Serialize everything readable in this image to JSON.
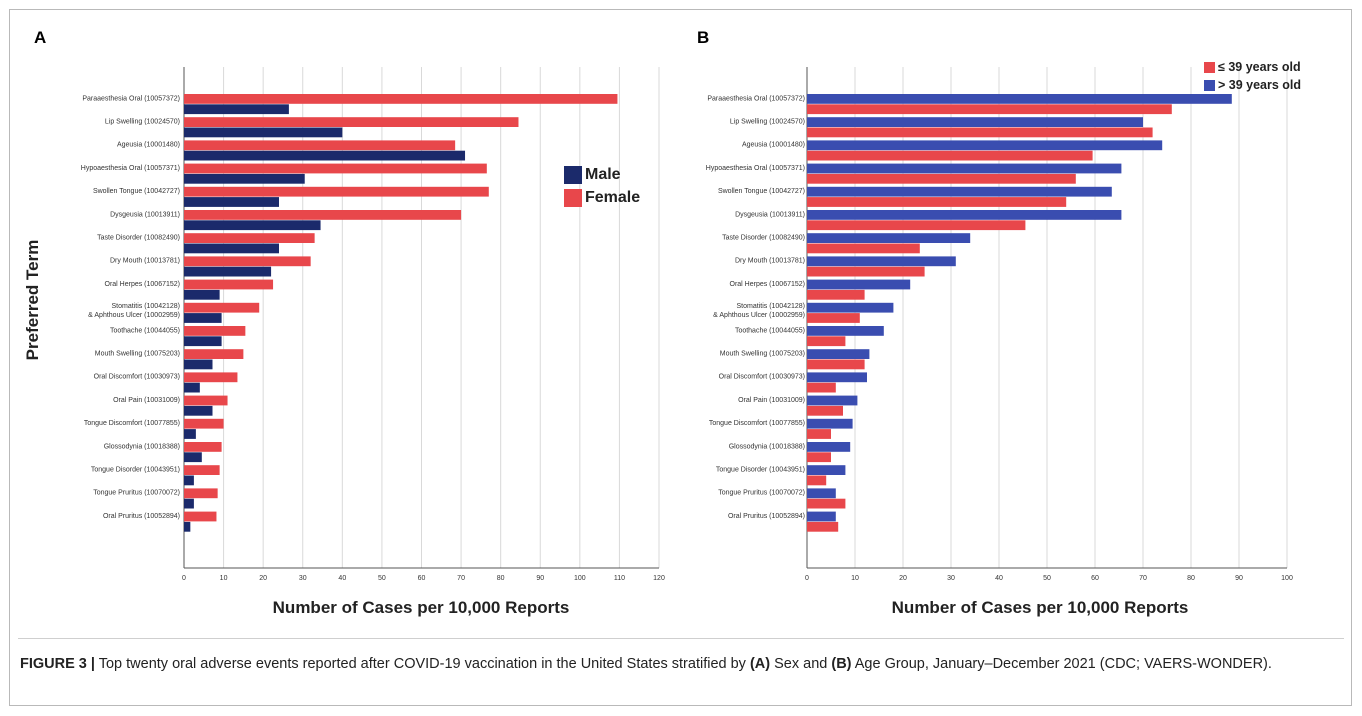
{
  "panels": {
    "a_letter": "A",
    "b_letter": "B"
  },
  "caption": {
    "label": "FIGURE 3 |",
    "part1": " Top twenty oral adverse events reported after COVID-19 vaccination in the United States stratified by ",
    "bold_a": "(A)",
    "part2": " Sex and ",
    "bold_b": "(B)",
    "part3": " Age Group, January–December 2021 (CDC; VAERS-WONDER)."
  },
  "colors": {
    "red": "#e8474b",
    "navy": "#1b2a6b",
    "blue": "#3a4db0",
    "grid": "#d9d9d9"
  },
  "chart_data": [
    {
      "type": "bar",
      "orientation": "horizontal",
      "panel": "A",
      "ylabel": "Preferred Term",
      "xlabel": "Number of Cases per 10,000 Reports",
      "xlim": [
        0,
        120
      ],
      "xticks": [
        "0",
        "10",
        "20",
        "30",
        "40",
        "50",
        "60",
        "70",
        "80",
        "90",
        "100",
        "110",
        "120"
      ],
      "grid": "vertical",
      "legend_placement": "right",
      "categories": [
        "Paraaesthesia Oral (10057372)",
        "Lip Swelling (10024570)",
        "Ageusia (10001480)",
        "Hypoaesthesia Oral (10057371)",
        "Swollen Tongue (10042727)",
        "Dysgeusia (10013911)",
        "Taste Disorder (10082490)",
        "Dry Mouth (10013781)",
        "Oral Herpes (10067152)",
        "Stomatitis (10042128)\n& Aphthous Ulcer (10002959)",
        "Toothache (10044055)",
        "Mouth Swelling (10075203)",
        "Oral Discomfort (10030973)",
        "Oral Pain (10031009)",
        "Tongue Discomfort (10077855)",
        "Glossodynia (10018388)",
        "Tongue Disorder (10043951)",
        "Tongue Pruritus (10070072)",
        "Oral Pruritus (10052894)"
      ],
      "series": [
        {
          "name": "Female",
          "color": "#e8474b",
          "values": [
            109.5,
            84.5,
            68.5,
            76.5,
            77,
            70,
            33,
            32,
            22.5,
            19,
            15.5,
            15,
            13.5,
            11,
            10,
            9.5,
            9,
            8.5,
            8.2
          ]
        },
        {
          "name": "Male",
          "color": "#1b2a6b",
          "values": [
            26.5,
            40,
            71,
            30.5,
            24,
            34.5,
            24,
            22,
            9,
            9.5,
            9.5,
            7.2,
            4,
            7.2,
            3,
            4.5,
            2.5,
            2.5,
            1.6
          ]
        }
      ]
    },
    {
      "type": "bar",
      "orientation": "horizontal",
      "panel": "B",
      "ylabel": "",
      "xlabel": "Number of Cases per 10,000 Reports",
      "xlim": [
        0,
        100
      ],
      "xticks": [
        "0",
        "10",
        "20",
        "30",
        "40",
        "50",
        "60",
        "70",
        "80",
        "90",
        "100"
      ],
      "grid": "vertical",
      "legend_placement": "top-right",
      "categories": [
        "Paraaesthesia Oral (10057372)",
        "Lip Swelling (10024570)",
        "Ageusia (10001480)",
        "Hypoaesthesia Oral (10057371)",
        "Swollen Tongue (10042727)",
        "Dysgeusia (10013911)",
        "Taste Disorder (10082490)",
        "Dry Mouth (10013781)",
        "Oral Herpes (10067152)",
        "Stomatitis (10042128)\n& Aphthous Ulcer (10002959)",
        "Toothache (10044055)",
        "Mouth Swelling (10075203)",
        "Oral Discomfort (10030973)",
        "Oral Pain (10031009)",
        "Tongue Discomfort (10077855)",
        "Glossodynia (10018388)",
        "Tongue Disorder (10043951)",
        "Tongue Pruritus (10070072)",
        "Oral Pruritus (10052894)"
      ],
      "series": [
        {
          "name": "> 39 years old",
          "color": "#3a4db0",
          "values": [
            88.5,
            70,
            74,
            65.5,
            63.5,
            65.5,
            34,
            31,
            21.5,
            18,
            16,
            13,
            12.5,
            10.5,
            9.5,
            9,
            8,
            6,
            6
          ]
        },
        {
          "name": "≤ 39 years old",
          "color": "#e8474b",
          "values": [
            76,
            72,
            59.5,
            56,
            54,
            45.5,
            23.5,
            24.5,
            12,
            11,
            8,
            12,
            6,
            7.5,
            5,
            5,
            4,
            8,
            6.5
          ]
        }
      ]
    }
  ]
}
